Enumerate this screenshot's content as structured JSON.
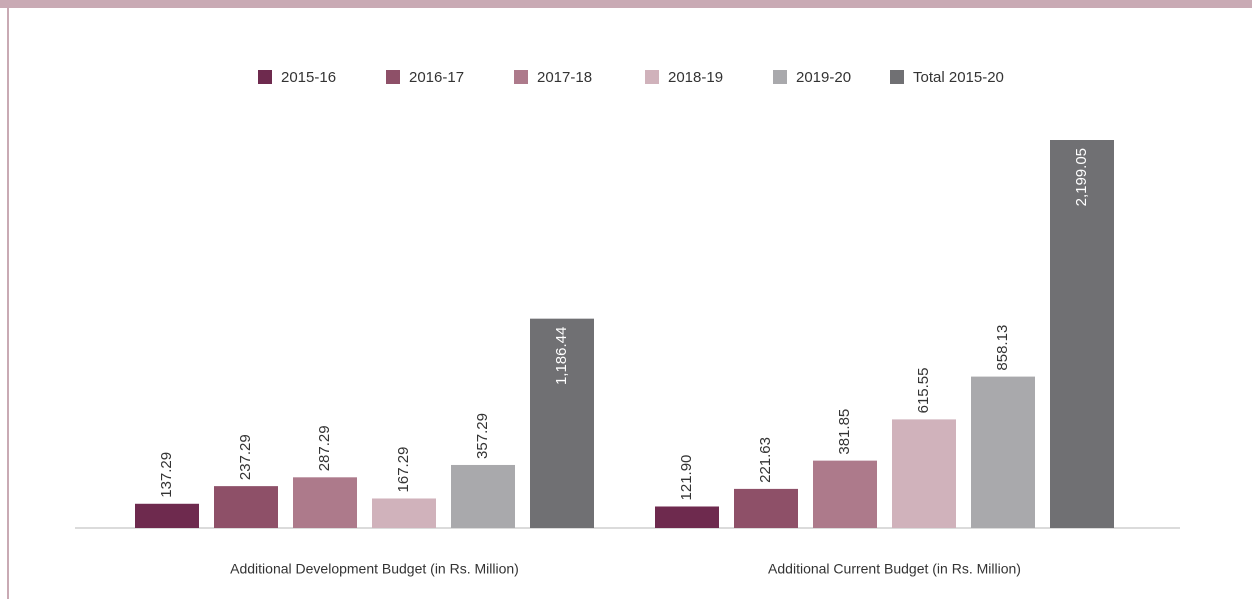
{
  "chart_data": {
    "type": "bar",
    "categories": [
      "Additional Development Budget (in Rs. Million)",
      "Additional Current Budget (in Rs. Million)"
    ],
    "series": [
      {
        "name": "2015-16",
        "color": "#6e2a4e",
        "values": [
          137.29,
          121.9
        ],
        "value_labels": [
          "137.29",
          "121.90"
        ]
      },
      {
        "name": "2016-17",
        "color": "#8e5068",
        "values": [
          237.29,
          221.63
        ],
        "value_labels": [
          "237.29",
          "221.63"
        ]
      },
      {
        "name": "2017-18",
        "color": "#ad7a8b",
        "values": [
          287.29,
          381.85
        ],
        "value_labels": [
          "287.29",
          "381.85"
        ]
      },
      {
        "name": "2018-19",
        "color": "#d0b2bb",
        "values": [
          167.29,
          615.55
        ],
        "value_labels": [
          "167.29",
          "615.55"
        ]
      },
      {
        "name": "2019-20",
        "color": "#a9a9ac",
        "values": [
          357.29,
          858.13
        ],
        "value_labels": [
          "357.29",
          "858.13"
        ]
      },
      {
        "name": "Total 2015-20",
        "color": "#707073",
        "values": [
          1186.44,
          2199.05
        ],
        "value_labels": [
          "1,186.44",
          "2,199.05"
        ]
      }
    ],
    "legend": "top"
  }
}
